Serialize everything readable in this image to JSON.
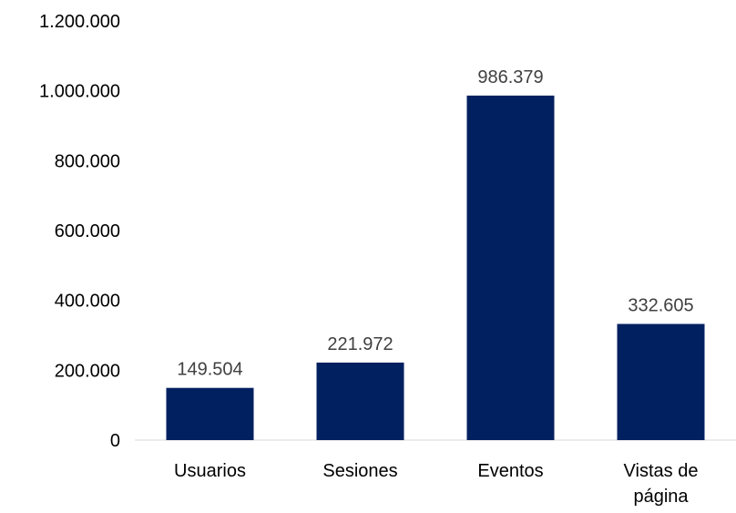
{
  "chart_data": {
    "type": "bar",
    "title": "",
    "xlabel": "",
    "ylabel": "",
    "categories": [
      [
        "Usuarios"
      ],
      [
        "Sesiones"
      ],
      [
        "Eventos"
      ],
      [
        "Vistas de",
        "página"
      ]
    ],
    "values": [
      149504,
      221972,
      986379,
      332605
    ],
    "value_labels": [
      "149.504",
      "221.972",
      "986.379",
      "332.605"
    ],
    "ylim": [
      0,
      1200000
    ],
    "yticks": [
      0,
      200000,
      400000,
      600000,
      800000,
      1000000,
      1200000
    ],
    "ytick_labels": [
      "0",
      "200.000",
      "400.000",
      "600.000",
      "800.000",
      "1.000.000",
      "1.200.000"
    ],
    "grid": false,
    "legend": "none",
    "bar_color": "#002060",
    "label_color": "#404040",
    "axis_color": "#d9d9d9"
  }
}
